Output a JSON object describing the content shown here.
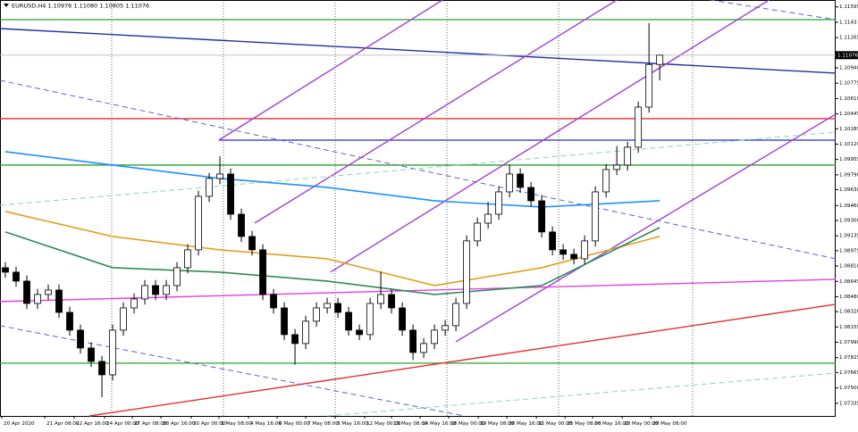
{
  "chart_data": {
    "type": "candlestick",
    "title": "EURUSD,H4 1.10976 1.11080 1.10805 1.11076",
    "open": [
      1.08792,
      1.08744,
      1.08648,
      1.08408,
      1.08504,
      1.08552,
      1.08312,
      1.08121,
      1.07929,
      1.07785,
      1.07641,
      1.08121,
      1.0836,
      1.08456,
      1.086,
      1.08504,
      1.086,
      1.08792,
      1.08984,
      1.09559,
      1.09751,
      1.09799,
      1.09367,
      1.09128,
      1.08984,
      1.08504,
      1.0836,
      1.08073,
      1.07977,
      1.08217,
      1.0836,
      1.08408,
      1.08312,
      1.08121,
      1.08073,
      1.08408,
      1.08504,
      1.0836,
      1.08121,
      1.07881,
      1.07977,
      1.08121,
      1.08169,
      1.08408,
      1.0908,
      1.09271,
      1.09367,
      1.09607,
      1.09799,
      1.09655,
      1.09511,
      1.09176,
      1.08984,
      1.08936,
      1.08888,
      1.0908,
      1.09607,
      1.09847,
      1.09895,
      1.10087,
      1.10518,
      1.10976
    ],
    "high": [
      1.08852,
      1.08804,
      1.08708,
      1.08564,
      1.08612,
      1.08612,
      1.08372,
      1.08181,
      1.07989,
      1.07845,
      1.08181,
      1.0842,
      1.08516,
      1.0866,
      1.0866,
      1.0866,
      1.08852,
      1.09044,
      1.09619,
      1.09811,
      1.0999,
      1.09859,
      1.09427,
      1.09188,
      1.09044,
      1.08564,
      1.0842,
      1.08133,
      1.08277,
      1.0842,
      1.08468,
      1.08468,
      1.08372,
      1.08181,
      1.08468,
      1.0875,
      1.08564,
      1.0842,
      1.08181,
      1.08037,
      1.08181,
      1.08229,
      1.08468,
      1.0914,
      1.09331,
      1.095,
      1.09667,
      1.099,
      1.09859,
      1.09715,
      1.09571,
      1.09236,
      1.09044,
      1.08996,
      1.0914,
      1.09667,
      1.09907,
      1.101,
      1.10147,
      1.10578,
      1.1142,
      1.1108
    ],
    "low": [
      1.08684,
      1.08588,
      1.08348,
      1.08348,
      1.08444,
      1.08252,
      1.08061,
      1.07869,
      1.07725,
      1.074,
      1.07581,
      1.08061,
      1.083,
      1.08396,
      1.08444,
      1.08444,
      1.0854,
      1.08732,
      1.08924,
      1.09499,
      1.09691,
      1.09307,
      1.09068,
      1.08924,
      1.08444,
      1.083,
      1.08013,
      1.0775,
      1.07917,
      1.08157,
      1.083,
      1.08252,
      1.08061,
      1.08013,
      1.08013,
      1.08348,
      1.083,
      1.08061,
      1.078,
      1.07821,
      1.07917,
      1.08061,
      1.08109,
      1.08348,
      1.0902,
      1.09211,
      1.09307,
      1.09547,
      1.09595,
      1.09451,
      1.09116,
      1.08924,
      1.08876,
      1.08828,
      1.08828,
      1.0902,
      1.09547,
      1.09787,
      1.09835,
      1.10027,
      1.10458,
      1.10805
    ],
    "close": [
      1.08744,
      1.08648,
      1.08408,
      1.08504,
      1.08552,
      1.08312,
      1.08121,
      1.07929,
      1.07785,
      1.07641,
      1.08121,
      1.0836,
      1.08456,
      1.086,
      1.08504,
      1.086,
      1.08792,
      1.08984,
      1.09559,
      1.09751,
      1.09799,
      1.09367,
      1.09128,
      1.08984,
      1.08504,
      1.0836,
      1.08073,
      1.07977,
      1.08217,
      1.0836,
      1.08408,
      1.08312,
      1.08121,
      1.08073,
      1.08408,
      1.08504,
      1.0836,
      1.08121,
      1.07881,
      1.07977,
      1.08121,
      1.08169,
      1.08408,
      1.0908,
      1.09271,
      1.09367,
      1.09607,
      1.09799,
      1.09655,
      1.09511,
      1.09176,
      1.08984,
      1.08936,
      1.08888,
      1.0908,
      1.09607,
      1.09847,
      1.09895,
      1.10087,
      1.10518,
      1.10976,
      1.11076
    ],
    "xlim": [
      -0.5,
      77.4
    ],
    "ylim": [
      1.07199,
      1.11669
    ],
    "yticks": [
      1.11595,
      1.1143,
      1.11265,
      {
        "value": 1.1094,
        "label": "1.10940"
      },
      1.10775,
      {
        "value": 1.1061,
        "label": "1.10610"
      },
      1.10445,
      1.10285,
      {
        "value": 1.1012,
        "label": "1.10120"
      },
      1.09955,
      {
        "value": 1.0979,
        "label": "1.09790"
      },
      {
        "value": 1.0963,
        "label": "1.09630"
      },
      {
        "value": 1.0946,
        "label": "1.09460"
      },
      {
        "value": 1.093,
        "label": "1.09300"
      },
      1.09135,
      1.08975,
      {
        "value": 1.0881,
        "label": "1.08810"
      },
      1.08645,
      {
        "value": 1.0848,
        "label": "1.08480"
      },
      {
        "value": 1.0832,
        "label": "1.08320"
      },
      1.08155,
      {
        "value": 1.0799,
        "label": "1.07990"
      },
      1.07825,
      1.07665,
      {
        "value": 1.075,
        "label": "1.07500"
      },
      1.07335
    ],
    "xticks": [
      {
        "value": -0.33,
        "label": "20 Apr 2020"
      },
      {
        "value": 3.67,
        "label": "21 Apr 08:00"
      },
      {
        "value": 6.42,
        "label": "22 Apr 16:00"
      },
      {
        "value": 9.25,
        "label": "24 Apr 00:00"
      },
      {
        "value": 11.83,
        "label": "27 Apr 08:00"
      },
      {
        "value": 14.5,
        "label": "28 Apr 16:00"
      },
      {
        "value": 17.33,
        "label": "30 Apr 00:00"
      },
      {
        "value": 19.92,
        "label": "1 May 08:00"
      },
      {
        "value": 22.67,
        "label": "4 May 16:00"
      },
      {
        "value": 25.33,
        "label": "6 May 00:00"
      },
      {
        "value": 28,
        "label": "7 May 08:00"
      },
      {
        "value": 30.75,
        "label": "8 May 16:00"
      },
      {
        "value": 33.5,
        "label": "12 May 00:00"
      },
      {
        "value": 36,
        "label": "13 May 08:00"
      },
      {
        "value": 38.67,
        "label": "14 May 16:00"
      },
      {
        "value": 41.33,
        "label": "18 May 00:00"
      },
      {
        "value": 44.08,
        "label": "19 May 08:00"
      },
      {
        "value": 46.75,
        "label": "20 May 16:00"
      },
      {
        "value": 49.5,
        "label": "22 May 00:00"
      },
      {
        "value": 52.17,
        "label": "25 May 08:00"
      },
      {
        "value": 54.75,
        "label": "26 May 16:00"
      },
      {
        "value": 57.5,
        "label": "28 May 00:00"
      },
      {
        "value": 60.17,
        "label": "29 May 08:00"
      }
    ],
    "last_price": 1.11076,
    "levels": [
      {
        "price": 1.11458,
        "color": "#2e9e2e"
      },
      {
        "price": 1.10394,
        "color": "#e03030"
      },
      {
        "price": 1.10163,
        "color": "#2030c0",
        "from": 19.9
      },
      {
        "price": 1.09895,
        "color": "#2e9e2e"
      },
      {
        "price": 1.07766,
        "color": "#2e9e2e"
      }
    ],
    "trendlines": [
      {
        "color": "#2030a0",
        "dashed": false,
        "points": [
          [
            -0.5,
            1.11362
          ],
          [
            77.4,
            1.10883
          ]
        ]
      },
      {
        "color": "#e03030",
        "dashed": false,
        "points": [
          [
            7.83,
            1.07199
          ],
          [
            77.4,
            1.08399
          ]
        ]
      },
      {
        "color": "#e040e0",
        "dashed": false,
        "points": [
          [
            -0.5,
            1.08428
          ],
          [
            77.4,
            1.08667
          ]
        ]
      },
      {
        "color": "#a040d0",
        "dashed": false,
        "points": [
          [
            19.9,
            1.10163
          ],
          [
            40.75,
            1.11669
          ]
        ]
      },
      {
        "color": "#a040d0",
        "dashed": false,
        "points": [
          [
            23.25,
            1.09272
          ],
          [
            57,
            1.11669
          ]
        ]
      },
      {
        "color": "#a040d0",
        "dashed": false,
        "points": [
          [
            30.3,
            1.08744
          ],
          [
            71.2,
            1.11669
          ]
        ]
      },
      {
        "color": "#a040d0",
        "dashed": false,
        "points": [
          [
            42,
            1.07996
          ],
          [
            77.4,
            1.10442
          ]
        ]
      },
      {
        "color": "#6060d0",
        "dashed": true,
        "points": [
          [
            -0.5,
            1.10806
          ],
          [
            77.4,
            1.08888
          ]
        ]
      },
      {
        "color": "#6060d0",
        "dashed": true,
        "points": [
          [
            -0.5,
            1.08169
          ],
          [
            42.8,
            1.07199
          ]
        ]
      },
      {
        "color": "#6060d0",
        "dashed": true,
        "points": [
          [
            65.7,
            1.11669
          ],
          [
            77.4,
            1.11458
          ]
        ]
      },
      {
        "color": "#8fd0c0",
        "dashed": true,
        "points": [
          [
            -0.5,
            1.09463
          ],
          [
            77.4,
            1.1025
          ]
        ]
      },
      {
        "color": "#8fd0c0",
        "dashed": true,
        "points": [
          [
            30,
            1.07199
          ],
          [
            77.4,
            1.0766
          ]
        ]
      }
    ],
    "indicators": [
      {
        "color": "#1e90ff",
        "x": [
          0,
          10,
          20,
          30,
          40,
          50,
          61
        ],
        "values": [
          1.10039,
          1.09895,
          1.09751,
          1.09655,
          1.09511,
          1.09444,
          1.09511
        ]
      },
      {
        "color": "#e0a020",
        "x": [
          0,
          10,
          20,
          30,
          40,
          50,
          61
        ],
        "values": [
          1.09396,
          1.09128,
          1.08984,
          1.08888,
          1.086,
          1.08792,
          1.09128
        ]
      },
      {
        "color": "#2e8b57",
        "x": [
          0,
          10,
          20,
          30,
          40,
          50,
          61
        ],
        "values": [
          1.09176,
          1.08792,
          1.08744,
          1.08648,
          1.08504,
          1.086,
          1.09224
        ]
      }
    ]
  }
}
